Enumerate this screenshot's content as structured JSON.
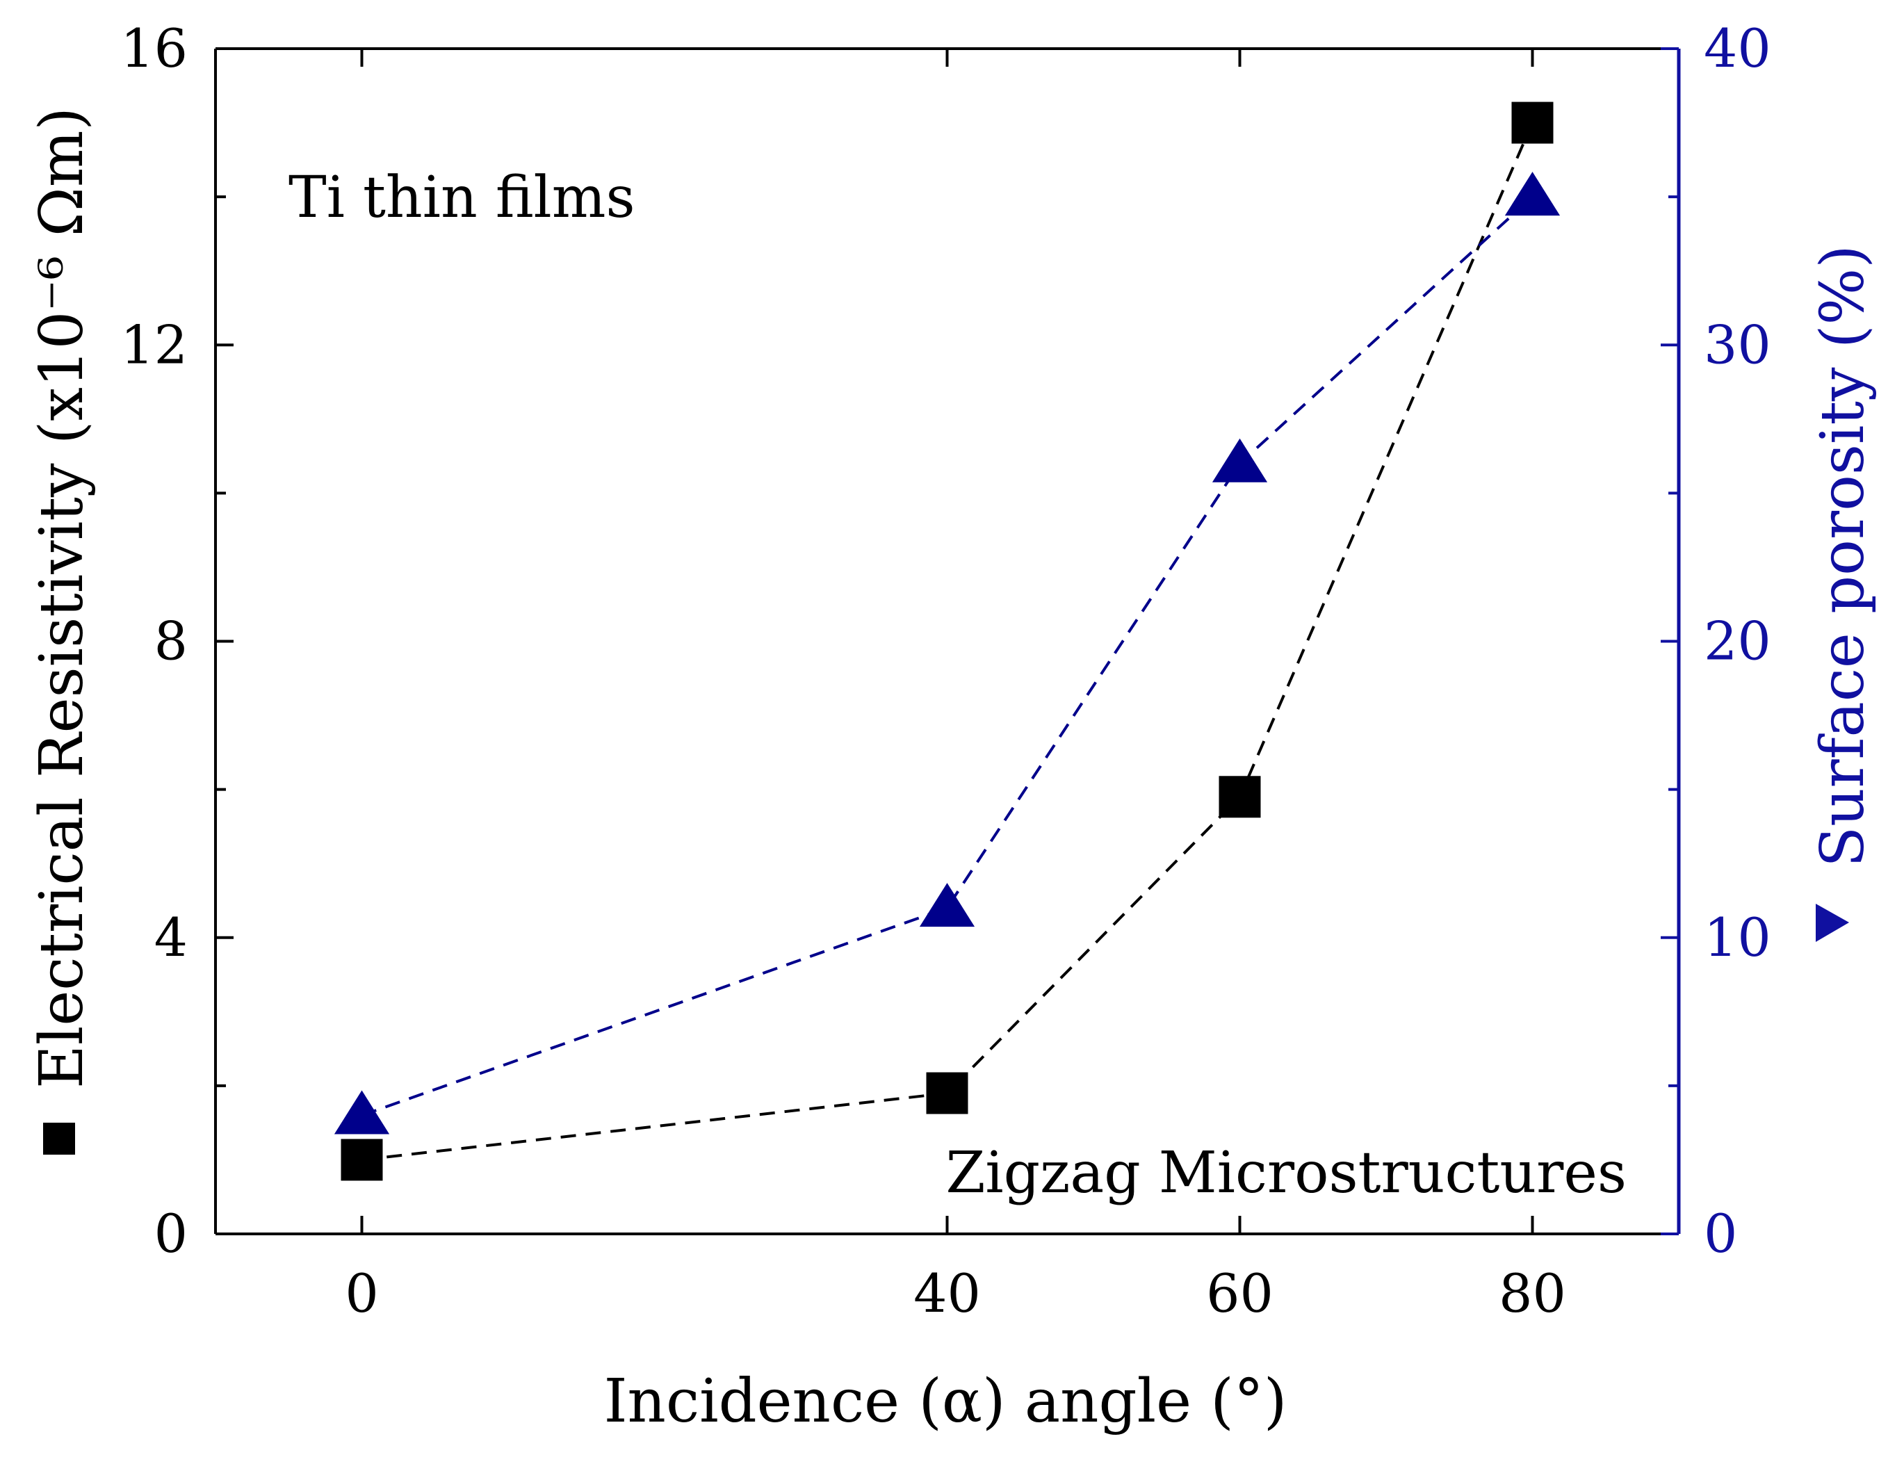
{
  "chart_data": {
    "type": "line",
    "title": "",
    "x": [
      0,
      40,
      60,
      80
    ],
    "xlabel": "Incidence (α) angle (°)",
    "xticks": [
      0,
      40,
      60,
      80
    ],
    "xlim": [
      -10,
      90
    ],
    "ylabel_left": "Electrical Resistivity (x10⁻⁶ Ωm)",
    "ylabel_right": "Surface porosity (%)",
    "ylim_left": [
      0,
      16
    ],
    "ylim_right": [
      0,
      40
    ],
    "yticks_left": [
      0,
      4,
      8,
      12,
      16
    ],
    "yticks_right": [
      0,
      10,
      20,
      30,
      40
    ],
    "series": [
      {
        "name": "Electrical Resistivity",
        "axis": "left",
        "marker": "square",
        "color": "#000000",
        "line_style": "dashed",
        "values": [
          1.0,
          1.9,
          5.9,
          15.0
        ]
      },
      {
        "name": "Surface porosity",
        "axis": "right",
        "marker": "triangle",
        "color": "#00008b",
        "line_style": "dashed",
        "values": [
          4.0,
          11.0,
          26.0,
          35.0
        ]
      }
    ],
    "annotations": [
      {
        "text": "Ti thin films",
        "position": "top-left"
      },
      {
        "text": "Zigzag Microstructures",
        "position": "bottom-right"
      }
    ],
    "grid": false,
    "legend_markers_in_axis_titles": true
  },
  "colors": {
    "left_axis": "#000000",
    "right_axis": "#1010a0"
  }
}
